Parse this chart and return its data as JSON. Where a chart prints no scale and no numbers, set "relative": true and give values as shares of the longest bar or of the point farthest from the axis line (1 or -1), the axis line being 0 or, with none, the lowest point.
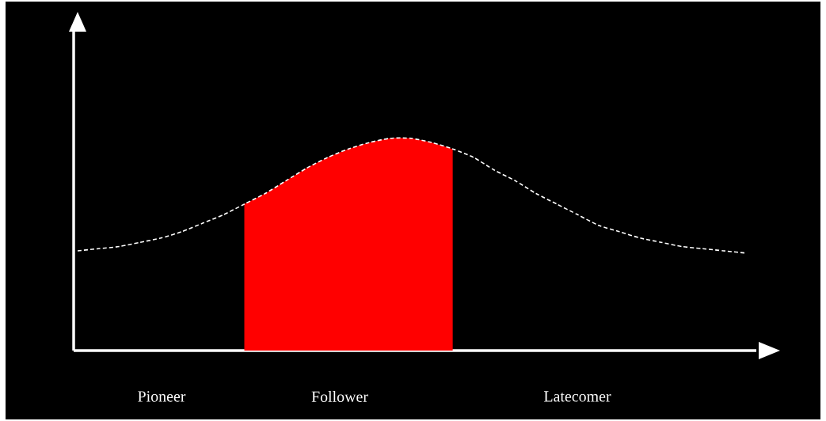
{
  "chart_data": {
    "type": "line",
    "relative": true,
    "categories": [
      null,
      null,
      null,
      null,
      null,
      null,
      null,
      null,
      null,
      null,
      null,
      null,
      null,
      null,
      null,
      null,
      null,
      null,
      null,
      null,
      null,
      null,
      null,
      null,
      null,
      null,
      null,
      null,
      null,
      null,
      null,
      null,
      null
    ],
    "series": [
      {
        "type": "area",
        "color": "#ff0000",
        "values": [
          null,
          null,
          null,
          null,
          null,
          null,
          null,
          null,
          0.69,
          0.74,
          0.8,
          0.86,
          0.91,
          0.95,
          0.98,
          1.0,
          1.0,
          0.98,
          0.95,
          null,
          null,
          null,
          null,
          null,
          null,
          null,
          null,
          null,
          null,
          null,
          null,
          null,
          null
        ]
      },
      {
        "color": "#ffffff",
        "line_style": "dashed",
        "values": [
          0.47,
          0.48,
          0.49,
          0.51,
          0.53,
          0.56,
          0.6,
          0.64,
          0.69,
          0.74,
          0.8,
          0.86,
          0.91,
          0.95,
          0.98,
          1.0,
          1.0,
          0.98,
          0.95,
          0.91,
          0.85,
          0.8,
          0.74,
          0.69,
          0.64,
          0.59,
          0.56,
          0.53,
          0.51,
          0.49,
          0.48,
          0.47,
          0.46
        ]
      }
    ],
    "annotations": [
      "Pioneer",
      "Follower",
      "Latecomer"
    ]
  }
}
